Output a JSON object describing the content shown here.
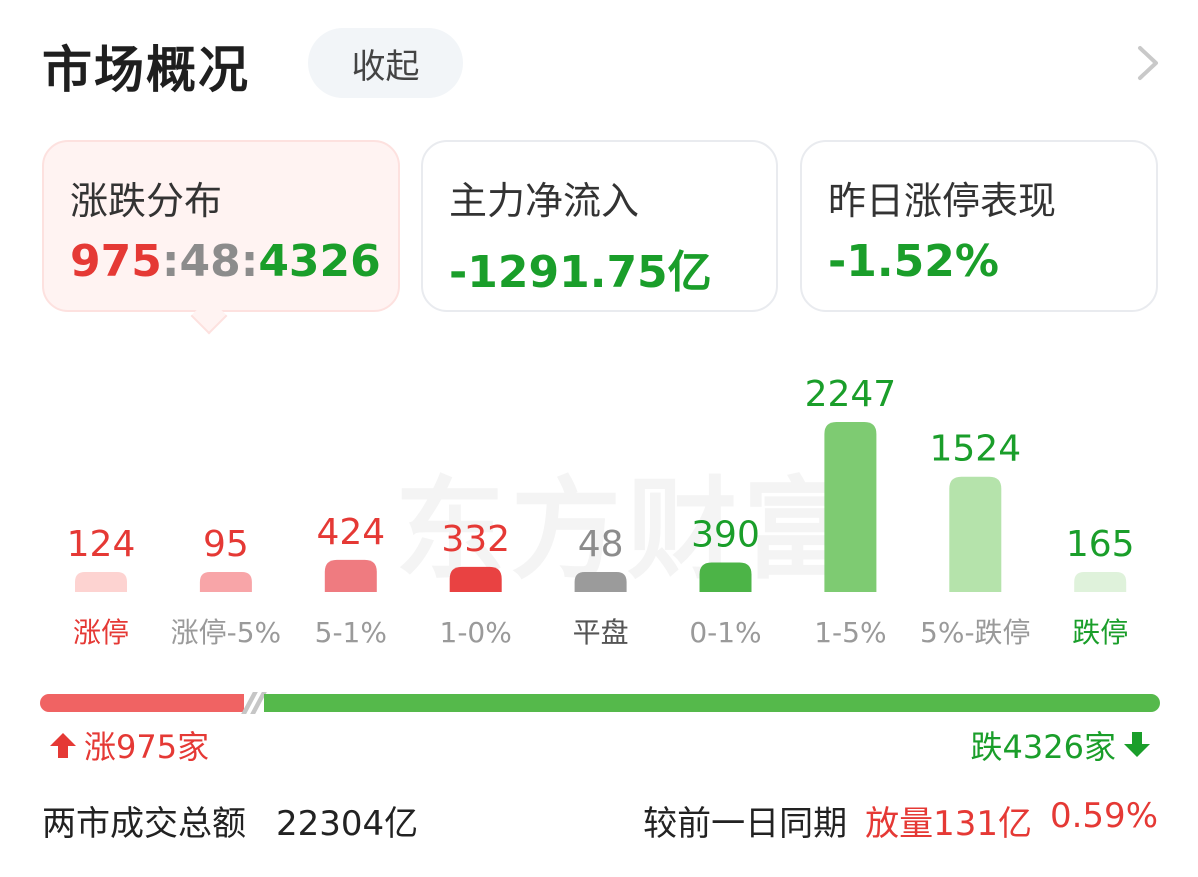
{
  "header": {
    "title": "市场概况",
    "collapse_label": "收起"
  },
  "cards": [
    {
      "label": "涨跌分布",
      "value_up": "975",
      "sep1": ":",
      "value_flat": "48",
      "sep2": ":",
      "value_down": "4326"
    },
    {
      "label": "主力净流入",
      "value": "-1291.75亿"
    },
    {
      "label": "昨日涨停表现",
      "value": "-1.52%"
    }
  ],
  "watermark": "东方财富",
  "chart_data": {
    "type": "bar",
    "categories": [
      "涨停",
      "涨停-5%",
      "5-1%",
      "1-0%",
      "平盘",
      "0-1%",
      "1-5%",
      "5%-跌停",
      "跌停"
    ],
    "values": [
      124,
      95,
      424,
      332,
      48,
      390,
      2247,
      1524,
      165
    ],
    "title": "",
    "xlabel": "",
    "ylabel": "",
    "bar_colors": [
      "#fdd3d1",
      "#f8a5a8",
      "#ef7b80",
      "#e94242",
      "#9b9b9b",
      "#4cb447",
      "#7ecb72",
      "#b5e3ab",
      "#dff2db"
    ],
    "label_colors": [
      "#e53935",
      "#e53935",
      "#e53935",
      "#e53935",
      "#8c8c8c",
      "#1a9e2a",
      "#1a9e2a",
      "#1a9e2a",
      "#1a9e2a"
    ],
    "category_label_colors": [
      "#e53935",
      "#9a9a9a",
      "#9a9a9a",
      "#9a9a9a",
      "#555555",
      "#9a9a9a",
      "#9a9a9a",
      "#9a9a9a",
      "#1a9e2a"
    ]
  },
  "ratio": {
    "up_count": 975,
    "flat_count": 48,
    "down_count": 4326,
    "up_label": "涨975家",
    "down_label": "跌4326家"
  },
  "footer": {
    "turnover_label": "两市成交总额",
    "turnover_value": "22304亿",
    "compare_label": "较前一日同期",
    "compare_change": "放量131亿",
    "compare_pct": "0.59%"
  },
  "colors": {
    "red": "#e53935",
    "green": "#1a9e2a",
    "bar_red": "#f06363",
    "bar_green": "#55b94b"
  }
}
